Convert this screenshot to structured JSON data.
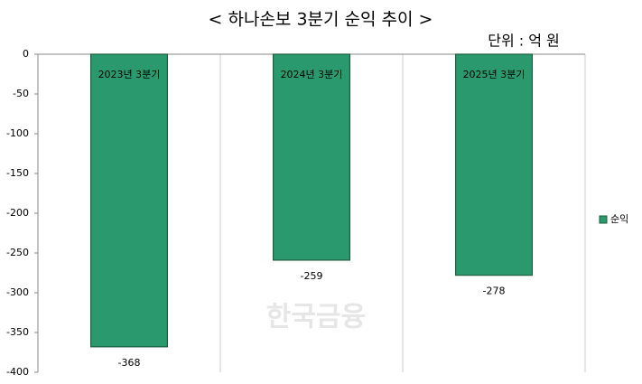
{
  "chart_data": {
    "type": "bar",
    "title": "< 하나손보 3분기 순익 추이 >",
    "subtitle": "단위 : 억 원",
    "watermark": "한국금융",
    "categories": [
      "2023년 3분기",
      "2024년 3분기",
      "2025년 3분기"
    ],
    "series": [
      {
        "name": "순익",
        "color": "#2a9a6e",
        "values": [
          -368,
          -259,
          -278
        ]
      }
    ],
    "ylim": [
      -400,
      0
    ],
    "yticks": [
      0,
      -50,
      -100,
      -150,
      -200,
      -250,
      -300,
      -350,
      -400
    ],
    "legend": "right"
  }
}
